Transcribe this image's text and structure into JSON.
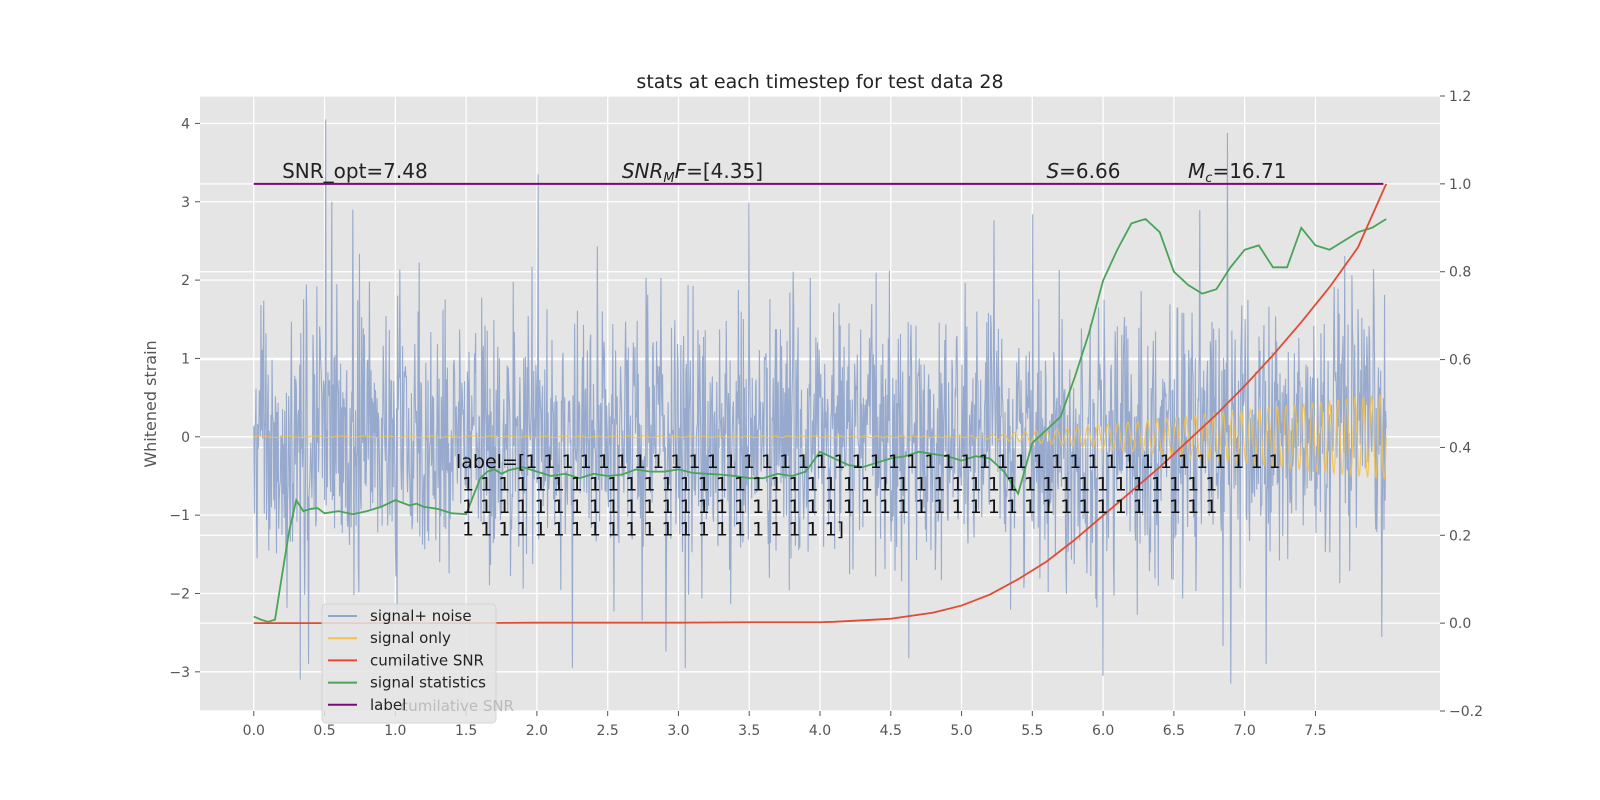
{
  "chart_data": {
    "type": "line",
    "title": "stats at each timestep for test data 28",
    "ylabel": "Whitened strain",
    "xlabel": "",
    "xlim": [
      -0.38,
      8.38
    ],
    "ylim": [
      -3.5,
      4.35
    ],
    "y2lim": [
      -0.2,
      1.2
    ],
    "grid": true,
    "xticks": [
      "0.0",
      "0.5",
      "1.0",
      "1.5",
      "2.0",
      "2.5",
      "3.0",
      "3.5",
      "4.0",
      "4.5",
      "5.0",
      "5.5",
      "6.0",
      "6.5",
      "7.0",
      "7.5"
    ],
    "xtick_values": [
      0,
      0.5,
      1,
      1.5,
      2,
      2.5,
      3,
      3.5,
      4,
      4.5,
      5,
      5.5,
      6,
      6.5,
      7,
      7.5
    ],
    "yticks": [
      "−3",
      "−2",
      "−1",
      "0",
      "1",
      "2",
      "3",
      "4"
    ],
    "ytick_values": [
      -3,
      -2,
      -1,
      0,
      1,
      2,
      3,
      4
    ],
    "y2ticks": [
      "−0.2",
      "0.0",
      "0.2",
      "0.4",
      "0.6",
      "0.8",
      "1.0",
      "1.2"
    ],
    "y2tick_values": [
      -0.2,
      0,
      0.2,
      0.4,
      0.6,
      0.8,
      1.0,
      1.2
    ],
    "legend_position": "lower-left",
    "legend": [
      {
        "name": "signal+ noise",
        "color": "#92a6cb"
      },
      {
        "name": "signal only",
        "color": "#f2c14e"
      },
      {
        "name": "cumilative SNR",
        "color": "#e24a33"
      },
      {
        "name": "signal statistics",
        "color": "#4aa458"
      },
      {
        "name": "label",
        "color": "#7b0a78"
      }
    ],
    "legend_ghost_text": "cumilative SNR",
    "noise_series": {
      "name": "signal+ noise",
      "color": "#92a6cb",
      "x_start": 0.0,
      "x_end": 8.0,
      "count": 2048,
      "sigma": 1.0,
      "peaks": [
        [
          0.51,
          4.05
        ],
        [
          2.01,
          3.35
        ],
        [
          6.88,
          3.88
        ],
        [
          6.9,
          -3.15
        ],
        [
          6.0,
          -3.05
        ],
        [
          0.33,
          -3.1
        ],
        [
          2.25,
          -2.95
        ],
        [
          3.05,
          -2.95
        ],
        [
          7.15,
          -2.9
        ],
        [
          0.55,
          3.0
        ],
        [
          0.7,
          2.9
        ]
      ]
    },
    "signal_series": {
      "name": "signal only",
      "color": "#f2c14e",
      "x_start": 0.0,
      "x_end": 8.0,
      "amp_start_time": 5.0,
      "amp_end": 0.55
    },
    "cumulative_snr": {
      "name": "cumilative SNR",
      "color": "#e24a33",
      "axis": "right",
      "x": [
        0,
        0.5,
        1,
        1.5,
        2,
        2.5,
        3,
        3.5,
        4,
        4.1,
        4.5,
        4.8,
        5.0,
        5.2,
        5.4,
        5.6,
        5.8,
        6.0,
        6.2,
        6.4,
        6.6,
        6.8,
        7.0,
        7.2,
        7.4,
        7.6,
        7.8,
        8.0
      ],
      "y": [
        0,
        0,
        0,
        0,
        0.001,
        0.001,
        0.001,
        0.002,
        0.002,
        0.003,
        0.01,
        0.024,
        0.04,
        0.065,
        0.1,
        0.14,
        0.19,
        0.245,
        0.3,
        0.355,
        0.415,
        0.475,
        0.54,
        0.61,
        0.685,
        0.765,
        0.855,
        1.0
      ]
    },
    "signal_statistics": {
      "name": "signal statistics",
      "color": "#4aa458",
      "axis": "right",
      "x": [
        0,
        0.05,
        0.1,
        0.15,
        0.2,
        0.25,
        0.3,
        0.35,
        0.4,
        0.45,
        0.5,
        0.6,
        0.7,
        0.8,
        0.9,
        1.0,
        1.1,
        1.15,
        1.2,
        1.3,
        1.4,
        1.5,
        1.6,
        1.65,
        1.7,
        1.75,
        1.8,
        1.9,
        2.0,
        2.1,
        2.2,
        2.3,
        2.4,
        2.5,
        2.6,
        2.7,
        2.8,
        2.9,
        3.0,
        3.1,
        3.2,
        3.3,
        3.4,
        3.5,
        3.6,
        3.7,
        3.8,
        3.9,
        4.0,
        4.1,
        4.2,
        4.3,
        4.4,
        4.5,
        4.6,
        4.7,
        4.8,
        4.9,
        5.0,
        5.1,
        5.2,
        5.3,
        5.4,
        5.5,
        5.6,
        5.7,
        5.8,
        5.9,
        6.0,
        6.1,
        6.2,
        6.3,
        6.4,
        6.5,
        6.6,
        6.7,
        6.8,
        6.9,
        7.0,
        7.1,
        7.2,
        7.3,
        7.4,
        7.5,
        7.6,
        7.7,
        7.8,
        7.9,
        8.0
      ],
      "y": [
        0.015,
        0.008,
        0.003,
        0.008,
        0.11,
        0.21,
        0.28,
        0.255,
        0.26,
        0.262,
        0.25,
        0.255,
        0.248,
        0.255,
        0.265,
        0.28,
        0.268,
        0.272,
        0.265,
        0.26,
        0.25,
        0.248,
        0.33,
        0.345,
        0.35,
        0.34,
        0.348,
        0.355,
        0.345,
        0.335,
        0.34,
        0.33,
        0.34,
        0.335,
        0.338,
        0.35,
        0.345,
        0.345,
        0.35,
        0.342,
        0.34,
        0.338,
        0.335,
        0.33,
        0.33,
        0.34,
        0.335,
        0.345,
        0.39,
        0.375,
        0.36,
        0.355,
        0.365,
        0.375,
        0.38,
        0.39,
        0.385,
        0.38,
        0.37,
        0.38,
        0.375,
        0.345,
        0.295,
        0.41,
        0.44,
        0.47,
        0.56,
        0.66,
        0.78,
        0.85,
        0.91,
        0.92,
        0.89,
        0.8,
        0.77,
        0.75,
        0.76,
        0.81,
        0.85,
        0.86,
        0.81,
        0.81,
        0.9,
        0.86,
        0.85,
        0.87,
        0.89,
        0.9,
        0.92
      ]
    },
    "label_series": {
      "name": "label",
      "color": "#7b0a78",
      "axis": "right",
      "x": [
        0,
        7.98
      ],
      "y": [
        1.0,
        1.0
      ]
    },
    "annotations": [
      {
        "id": "snr-opt",
        "text": "SNR_opt=7.48",
        "x": 0.2
      },
      {
        "id": "snr-mf",
        "prefix": "SNR",
        "sub": "M",
        "suffix": "F=[4.35]",
        "x": 2.6
      },
      {
        "id": "s-value",
        "prefix": "S",
        "suffix": "=6.66",
        "x": 5.6
      },
      {
        "id": "mc-value",
        "prefix": "M",
        "sub": "c",
        "suffix": "=16.71",
        "x": 6.6
      }
    ],
    "label_text": [
      "label=[1 1 1 1 1 1 1 1 1 1 1 1 1 1 1 1 1 1 1 1 1 1 1 1 1 1 1 1 1 1 1 1 1 1 1 1 1 1 1 1 1 1",
      " 1 1 1 1 1 1 1 1 1 1 1 1 1 1 1 1 1 1 1 1 1 1 1 1 1 1 1 1 1 1 1 1 1 1 1 1 1 1 1 1 1 1",
      " 1 1 1 1 1 1 1 1 1 1 1 1 1 1 1 1 1 1 1 1 1 1 1 1 1 1 1 1 1 1 1 1 1 1 1 1 1 1 1 1 1 1",
      " 1 1 1 1 1 1 1 1 1 1 1 1 1 1 1 1 1 1 1 1 1]"
    ]
  }
}
